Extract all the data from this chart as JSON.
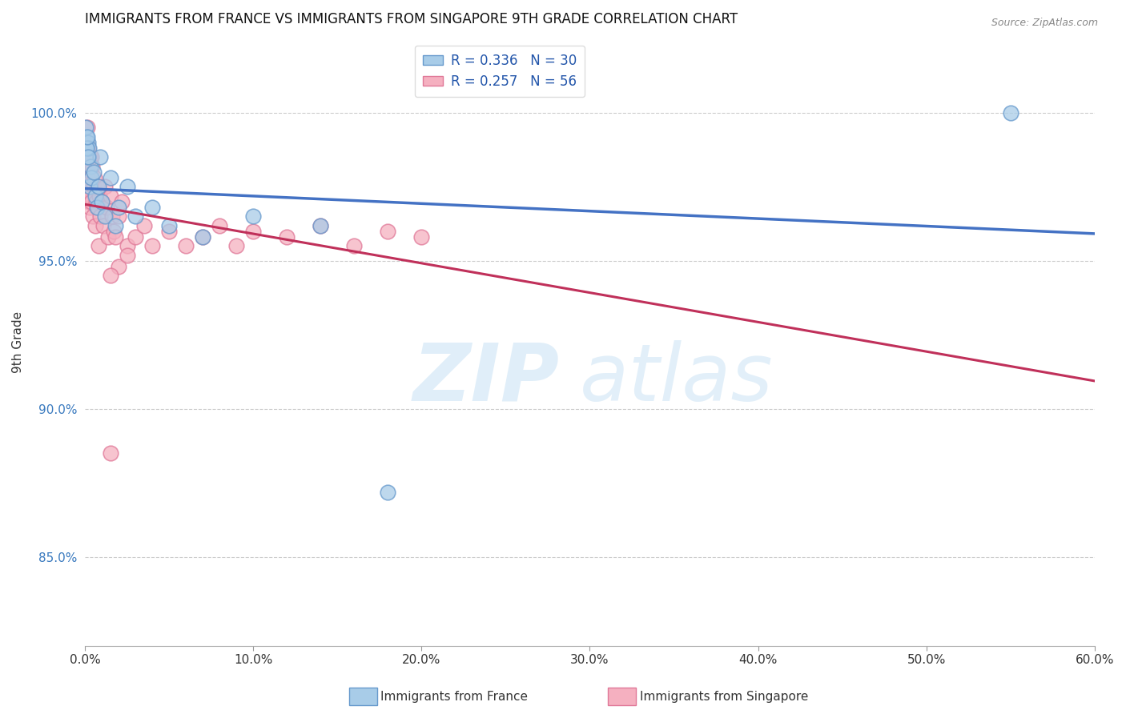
{
  "title": "IMMIGRANTS FROM FRANCE VS IMMIGRANTS FROM SINGAPORE 9TH GRADE CORRELATION CHART",
  "source": "Source: ZipAtlas.com",
  "ylabel": "9th Grade",
  "x_tick_labels": [
    "0.0%",
    "10.0%",
    "20.0%",
    "30.0%",
    "40.0%",
    "50.0%",
    "60.0%"
  ],
  "x_tick_values": [
    0.0,
    10.0,
    20.0,
    30.0,
    40.0,
    50.0,
    60.0
  ],
  "y_tick_labels": [
    "85.0%",
    "90.0%",
    "95.0%",
    "100.0%"
  ],
  "y_tick_values": [
    85.0,
    90.0,
    95.0,
    100.0
  ],
  "xlim": [
    0.0,
    60.0
  ],
  "ylim": [
    82.0,
    102.5
  ],
  "france_color": "#a8cce8",
  "france_edge_color": "#6699cc",
  "singapore_color": "#f5b0c0",
  "singapore_edge_color": "#e07898",
  "france_line_color": "#4472c4",
  "singapore_line_color": "#c0305a",
  "legend_france_label_r": "R = 0.336",
  "legend_france_label_n": "N = 30",
  "legend_singapore_label_r": "R = 0.257",
  "legend_singapore_label_n": "N = 56",
  "france_scatter_x": [
    0.1,
    0.15,
    0.2,
    0.25,
    0.3,
    0.35,
    0.4,
    0.5,
    0.6,
    0.7,
    0.8,
    0.9,
    1.0,
    1.2,
    1.5,
    1.8,
    2.0,
    2.5,
    3.0,
    4.0,
    5.0,
    7.0,
    10.0,
    14.0,
    18.0,
    55.0,
    0.05,
    0.08,
    0.12,
    0.18
  ],
  "france_scatter_y": [
    99.2,
    98.5,
    99.0,
    98.8,
    97.5,
    98.2,
    97.8,
    98.0,
    97.2,
    96.8,
    97.5,
    98.5,
    97.0,
    96.5,
    97.8,
    96.2,
    96.8,
    97.5,
    96.5,
    96.8,
    96.2,
    95.8,
    96.5,
    96.2,
    87.2,
    100.0,
    99.5,
    98.8,
    99.2,
    98.5
  ],
  "singapore_scatter_x": [
    0.05,
    0.08,
    0.1,
    0.12,
    0.15,
    0.18,
    0.2,
    0.22,
    0.25,
    0.28,
    0.3,
    0.32,
    0.35,
    0.38,
    0.4,
    0.42,
    0.45,
    0.5,
    0.55,
    0.6,
    0.65,
    0.7,
    0.75,
    0.8,
    0.85,
    0.9,
    1.0,
    1.1,
    1.2,
    1.3,
    1.4,
    1.5,
    1.6,
    1.7,
    1.8,
    2.0,
    2.2,
    2.5,
    3.0,
    3.5,
    4.0,
    5.0,
    6.0,
    7.0,
    8.0,
    9.0,
    10.0,
    12.0,
    14.0,
    16.0,
    18.0,
    20.0,
    1.5,
    2.0,
    2.5,
    1.5
  ],
  "singapore_scatter_y": [
    98.5,
    99.0,
    98.2,
    99.5,
    97.8,
    98.8,
    97.5,
    98.2,
    97.0,
    98.5,
    96.8,
    98.0,
    97.2,
    98.5,
    97.0,
    98.2,
    96.5,
    97.5,
    97.8,
    96.2,
    97.0,
    97.5,
    96.8,
    95.5,
    97.2,
    96.5,
    97.0,
    96.2,
    97.5,
    96.8,
    95.8,
    97.2,
    96.5,
    96.0,
    95.8,
    96.5,
    97.0,
    95.5,
    95.8,
    96.2,
    95.5,
    96.0,
    95.5,
    95.8,
    96.2,
    95.5,
    96.0,
    95.8,
    96.2,
    95.5,
    96.0,
    95.8,
    88.5,
    94.8,
    95.2,
    94.5
  ]
}
